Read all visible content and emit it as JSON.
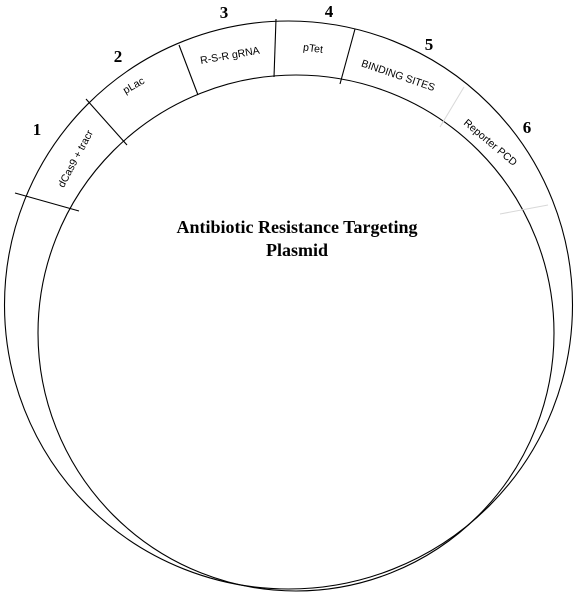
{
  "title_lines": [
    "Antibiotic Resistance Targeting",
    "Plasmid"
  ],
  "segments": [
    {
      "number": "1",
      "label": "dCas9  + tracr",
      "divider": "dark"
    },
    {
      "number": "2",
      "label": "pLac",
      "divider": "dark"
    },
    {
      "number": "3",
      "label": "R-S-R gRNA",
      "divider": "dark"
    },
    {
      "number": "4",
      "label": "pTet",
      "divider": "dark"
    },
    {
      "number": "5",
      "label": "BINDING SITES",
      "divider": "light"
    },
    {
      "number": "6",
      "label": "Reporter PCD",
      "divider": "light"
    }
  ],
  "colors": {
    "stroke": "#000000",
    "light_divider": "#d8d8d8",
    "background": "#ffffff"
  }
}
